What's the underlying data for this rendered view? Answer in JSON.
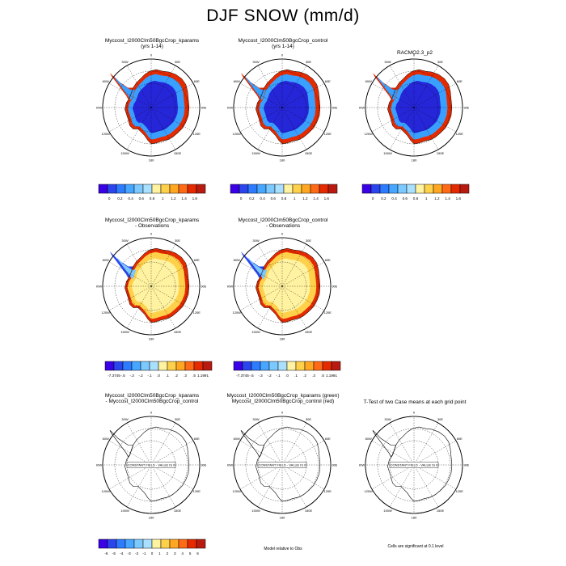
{
  "figure": {
    "title": "DJF SNOW (mm/d)",
    "colors": {
      "ocean": "#ffffff",
      "ice_low": "#2626d9",
      "ice_mid": "#3aa0ff",
      "coast_high": "#e52a00",
      "diff_bg": "#fff2a0"
    }
  },
  "panels": [
    {
      "title_l1": "Myccost_I2000Clm50BgcCrop_kparams",
      "title_l2": "(yrs 1-14)",
      "kind": "abs"
    },
    {
      "title_l1": "Myccost_I2000Clm50BgcCrop_control",
      "title_l2": "(yrs 1-14)",
      "kind": "abs"
    },
    {
      "title_l1": "RACMO2.3_p2",
      "title_l2": "",
      "kind": "abs"
    },
    {
      "title_l1": "Myccost_I2000Clm50BgcCrop_kparams",
      "title_l2": "- Observations",
      "kind": "diff"
    },
    {
      "title_l1": "Myccost_I2000Clm50BgcCrop_control",
      "title_l2": "- Observations",
      "kind": "diff"
    },
    {
      "title_l1": "Myccost_I2000Clm50BgcCrop_kparams",
      "title_l2": "- Myccost_I2000Clm50BgcCrop_control",
      "kind": "const"
    },
    {
      "title_l1": "Myccost_I2000Clm50BgcCrop_kparams (green)",
      "title_l2": "Myccost_I2000Clm50BgcCrop_control (red)",
      "kind": "const"
    },
    {
      "title_l1": "T-Test of two Case means at each grid point",
      "title_l2": "",
      "kind": "const"
    }
  ],
  "map_labels": {
    "lon": [
      "0",
      "30E",
      "60E",
      "90E",
      "120E",
      "150E",
      "180",
      "150W",
      "120W",
      "90W",
      "60W",
      "30W"
    ],
    "constant_field": "CONSTANT FIELD - VALUE IS 0"
  },
  "colorbars": {
    "abs": {
      "colors": [
        "#3a00e6",
        "#2a45ee",
        "#2d7bff",
        "#47a6ff",
        "#7cc9ff",
        "#a9e0ff",
        "#fff2a0",
        "#ffd14a",
        "#ffa722",
        "#ff6a16",
        "#e52a00",
        "#b81a10"
      ],
      "labels": [
        "0",
        "0.2",
        "0.4",
        "0.6",
        "0.8",
        "1",
        "1.2",
        "1.4",
        "1.6"
      ]
    },
    "diff": {
      "colors": [
        "#3a00e6",
        "#2a45ee",
        "#2d7bff",
        "#47a6ff",
        "#7cc9ff",
        "#a9e0ff",
        "#fff2a0",
        "#ffd14a",
        "#ffa722",
        "#ff6a16",
        "#e52a00",
        "#b81a10"
      ],
      "labels": [
        "-7.3745",
        "-.5",
        "-.3",
        "-.2",
        "-.1",
        ".0",
        ".1",
        ".2",
        ".3",
        ".5",
        "1.1991"
      ]
    },
    "diff2": {
      "colors": [
        "#3a00e6",
        "#2a45ee",
        "#2d7bff",
        "#47a6ff",
        "#7cc9ff",
        "#a9e0ff",
        "#fff2a0",
        "#ffd14a",
        "#ffa722",
        "#ff6a16",
        "#e52a00",
        "#b81a10"
      ],
      "labels": [
        "-6",
        "-5",
        "-4",
        "-3",
        "-2",
        "-1",
        "0",
        "1",
        "2",
        "3",
        "4",
        "5",
        "6"
      ]
    }
  },
  "notes": {
    "model_relative": "Model relative to Obs",
    "cells_significant": "Cells are significant at 0.1 level"
  }
}
